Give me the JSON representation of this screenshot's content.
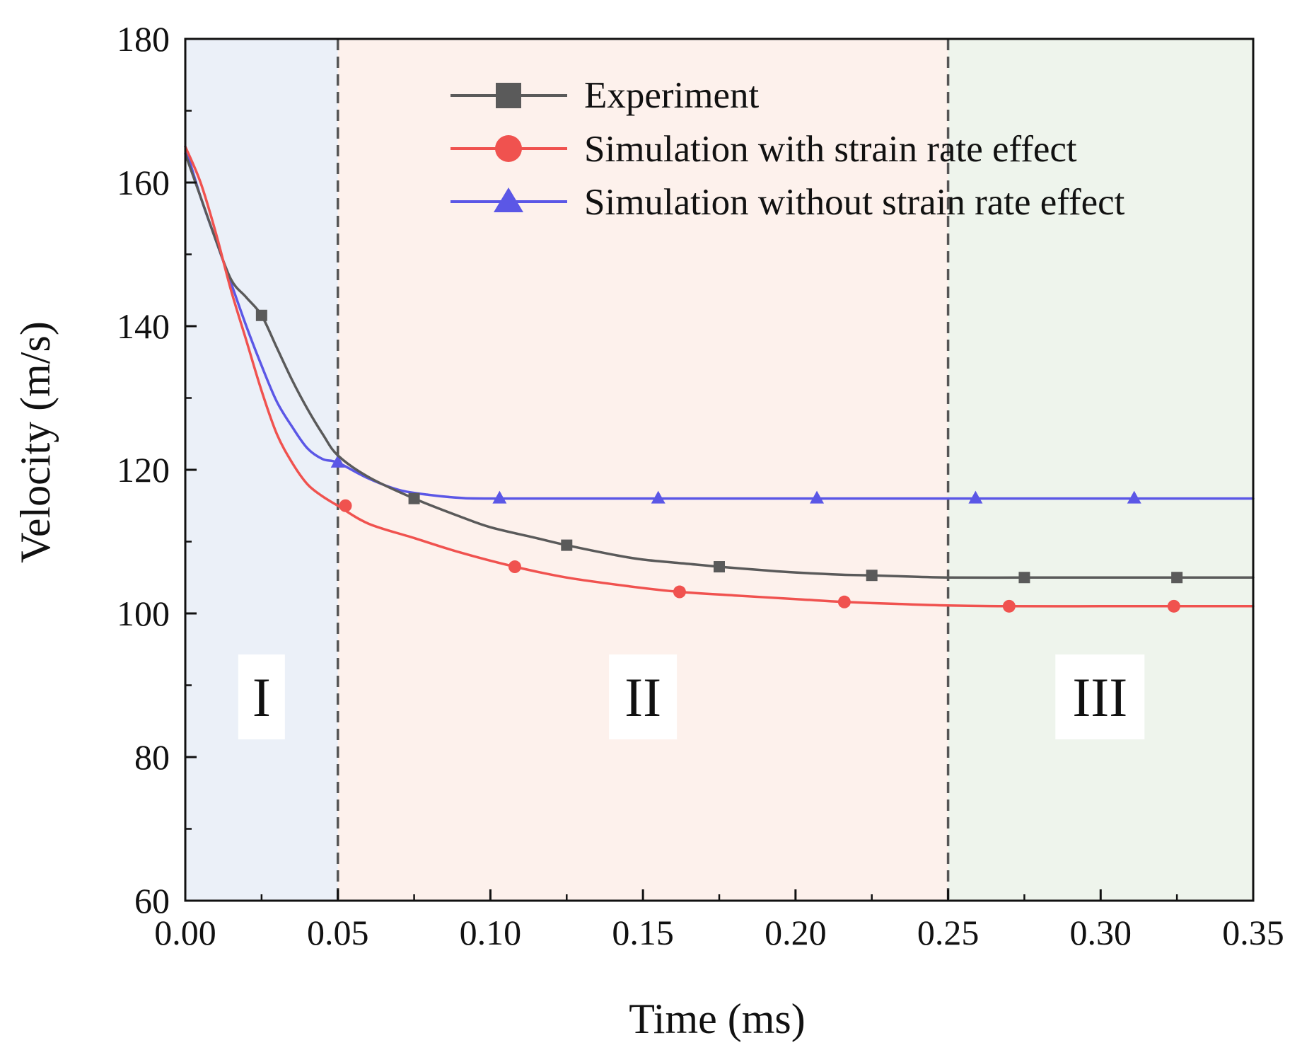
{
  "chart_data": {
    "type": "line",
    "title": "",
    "xlabel": "Time (ms)",
    "ylabel": "Velocity (m/s)",
    "xlim": [
      0,
      0.35
    ],
    "ylim": [
      60,
      180
    ],
    "xticks": [
      "0.00",
      "0.05",
      "0.10",
      "0.15",
      "0.20",
      "0.25",
      "0.30",
      "0.35"
    ],
    "xtick_values": [
      0,
      0.05,
      0.1,
      0.15,
      0.2,
      0.25,
      0.3,
      0.35
    ],
    "yticks": [
      "60",
      "80",
      "100",
      "120",
      "140",
      "160",
      "180"
    ],
    "ytick_values": [
      60,
      80,
      100,
      120,
      140,
      160,
      180
    ],
    "grid": false,
    "legend_position": "top-right",
    "regions": [
      {
        "label": "I",
        "x_start": 0,
        "x_end": 0.05,
        "color": "#ebf0f8"
      },
      {
        "label": "II",
        "x_start": 0.05,
        "x_end": 0.25,
        "color": "#fdf1ec"
      },
      {
        "label": "III",
        "x_start": 0.25,
        "x_end": 0.35,
        "color": "#eef4ec"
      }
    ],
    "boundaries": [
      0.05,
      0.25
    ],
    "series": [
      {
        "name": "Experiment",
        "color": "#5a5a5a",
        "marker": "square",
        "curve_x": [
          0,
          0.005,
          0.01,
          0.015,
          0.02,
          0.025,
          0.03,
          0.035,
          0.04,
          0.045,
          0.05,
          0.06,
          0.075,
          0.09,
          0.1,
          0.115,
          0.125,
          0.14,
          0.15,
          0.165,
          0.175,
          0.19,
          0.2,
          0.215,
          0.225,
          0.24,
          0.25,
          0.275,
          0.3,
          0.325,
          0.35
        ],
        "curve_y": [
          164,
          158,
          152,
          146.5,
          144,
          141.5,
          137,
          132.5,
          128.5,
          125,
          122,
          119,
          116,
          113.5,
          112,
          110.5,
          109.5,
          108.2,
          107.5,
          106.9,
          106.5,
          106,
          105.7,
          105.4,
          105.3,
          105.1,
          105,
          105,
          105,
          105,
          105
        ],
        "marker_x": [
          0.025,
          0.075,
          0.125,
          0.175,
          0.225,
          0.275,
          0.325
        ],
        "marker_y": [
          141.5,
          116,
          109.5,
          106.5,
          105.3,
          105,
          105
        ]
      },
      {
        "name": "Simulation with strain rate effect",
        "color": "#f0524f",
        "marker": "circle",
        "curve_x": [
          0,
          0.005,
          0.01,
          0.015,
          0.02,
          0.025,
          0.03,
          0.035,
          0.04,
          0.045,
          0.05,
          0.06,
          0.075,
          0.09,
          0.108,
          0.125,
          0.145,
          0.162,
          0.18,
          0.2,
          0.216,
          0.235,
          0.25,
          0.27,
          0.3,
          0.324,
          0.35
        ],
        "curve_y": [
          165,
          160,
          153,
          145,
          138,
          131,
          125,
          121,
          118,
          116.3,
          115,
          112.5,
          110.5,
          108.5,
          106.5,
          105,
          103.8,
          103,
          102.5,
          102,
          101.6,
          101.3,
          101.1,
          101,
          101,
          101,
          101
        ],
        "marker_x": [
          0.0525,
          0.108,
          0.162,
          0.216,
          0.27,
          0.324
        ],
        "marker_y": [
          115,
          106.5,
          103,
          101.6,
          101,
          101
        ]
      },
      {
        "name": "Simulation without strain rate effect",
        "color": "#5b57e6",
        "marker": "triangle",
        "curve_x": [
          0,
          0.005,
          0.01,
          0.015,
          0.02,
          0.025,
          0.03,
          0.035,
          0.04,
          0.045,
          0.05,
          0.06,
          0.07,
          0.08,
          0.09,
          0.1,
          0.15,
          0.2,
          0.25,
          0.3,
          0.35
        ],
        "curve_y": [
          165,
          158,
          152,
          146,
          140,
          134.5,
          129.5,
          126,
          123,
          121.5,
          121,
          118.8,
          117.2,
          116.5,
          116.1,
          116,
          116,
          116,
          116,
          116,
          116
        ],
        "marker_x": [
          0.05,
          0.103,
          0.155,
          0.207,
          0.259,
          0.311
        ],
        "marker_y": [
          121,
          116,
          116,
          116,
          116,
          116
        ]
      }
    ]
  }
}
